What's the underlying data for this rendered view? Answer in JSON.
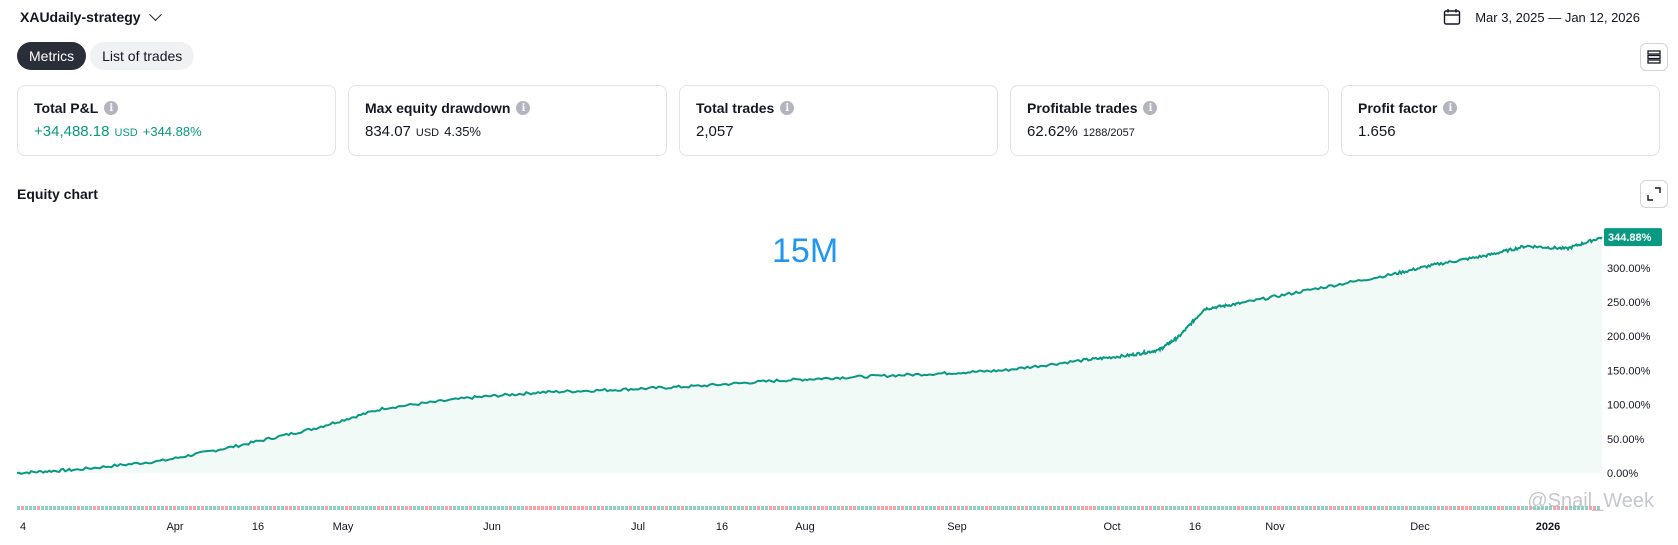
{
  "header": {
    "strategy_name": "XAUdaily-strategy",
    "date_range": "Mar 3, 2025 — Jan 12, 2026"
  },
  "tabs": [
    {
      "label": "Metrics",
      "active": true
    },
    {
      "label": "List of trades",
      "active": false
    }
  ],
  "metrics": [
    {
      "title": "Total P&L",
      "value": "+34,488.18",
      "unit": "USD",
      "extra": "+344.88%",
      "color": "#089981"
    },
    {
      "title": "Max equity drawdown",
      "value": "834.07",
      "unit": "USD",
      "extra": "4.35%",
      "color": "#131722"
    },
    {
      "title": "Total trades",
      "value": "2,057",
      "unit": "",
      "extra": "",
      "color": "#131722"
    },
    {
      "title": "Profitable trades",
      "value": "62.62%",
      "unit": "1288/2057",
      "extra": "",
      "color": "#131722"
    },
    {
      "title": "Profit factor",
      "value": "1.656",
      "unit": "",
      "extra": "",
      "color": "#131722"
    }
  ],
  "equity_section": {
    "title": "Equity chart",
    "overlay_text": "15M",
    "watermark": "@Snail_Week"
  },
  "colors": {
    "accent_green": "#089981",
    "loss_red": "#f7525f",
    "overlay_blue": "#2196f3"
  },
  "chart_data": {
    "type": "area",
    "x_tick_labels": [
      "4",
      "Apr",
      "16",
      "May",
      "Jun",
      "Jul",
      "16",
      "Aug",
      "Sep",
      "Oct",
      "16",
      "Nov",
      "Dec",
      "2026"
    ],
    "y_tick_labels": [
      "0.00%",
      "50.00%",
      "100.00%",
      "150.00%",
      "200.00%",
      "250.00%",
      "300.00%"
    ],
    "ylim": [
      0,
      370
    ],
    "last_value_label": "344.88%",
    "series": [
      {
        "x": [
          "2025-03-03",
          "2025-03-15",
          "2025-04-01",
          "2025-04-16",
          "2025-05-01",
          "2025-05-15",
          "2025-06-01",
          "2025-06-15",
          "2025-07-01",
          "2025-07-16",
          "2025-08-01",
          "2025-08-15",
          "2025-09-01",
          "2025-09-15",
          "2025-10-01",
          "2025-10-10",
          "2025-10-16",
          "2025-10-20",
          "2025-10-25",
          "2025-11-01",
          "2025-11-15",
          "2025-12-01",
          "2025-12-10",
          "2025-12-20",
          "2025-12-28",
          "2026-01-05",
          "2026-01-12"
        ],
        "values": [
          0,
          5,
          18,
          40,
          65,
          95,
          110,
          118,
          122,
          127,
          135,
          140,
          145,
          150,
          165,
          172,
          180,
          200,
          240,
          248,
          268,
          290,
          305,
          318,
          332,
          328,
          344.88
        ]
      }
    ]
  }
}
